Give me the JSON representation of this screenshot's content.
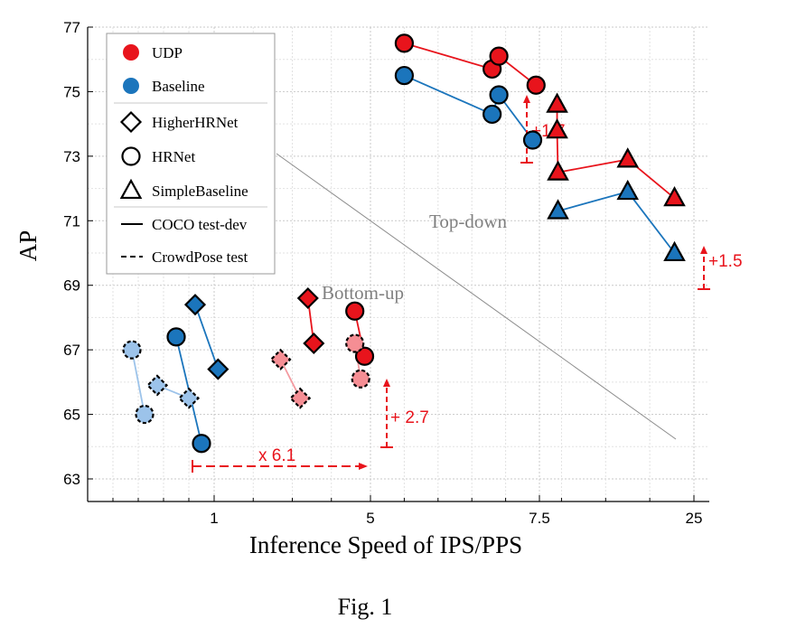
{
  "chart_data": {
    "type": "scatter",
    "xlabel": "Inference Speed of IPS/PPS",
    "ylabel": "AP",
    "x_tick_labels": [
      "1",
      "5",
      "7.5",
      "25"
    ],
    "y_ticks": [
      "63",
      "65",
      "67",
      "69",
      "71",
      "73",
      "75",
      "77"
    ],
    "ylim": [
      62.3,
      77
    ],
    "grid": true,
    "legend_position": "top-left",
    "legend": {
      "colors": [
        {
          "label": "UDP",
          "color": "#e8141c"
        },
        {
          "label": "Baseline",
          "color": "#1b75bc"
        }
      ],
      "markers": [
        {
          "label": "HigherHRNet",
          "shape": "diamond"
        },
        {
          "label": "HRNet",
          "shape": "circle"
        },
        {
          "label": "SimpleBaseline",
          "shape": "triangle"
        }
      ],
      "lines": [
        {
          "label": "COCO test-dev",
          "style": "solid"
        },
        {
          "label": "CrowdPose test",
          "style": "dashed"
        }
      ]
    },
    "region_labels": {
      "top_down": "Top-down",
      "bottom_up": "Bottom-up"
    },
    "annotations": {
      "topdown_hrnet_gain": "+1.7",
      "topdown_simplebaseline_gain": "+1.5",
      "bottomup_gain": "+ 2.7",
      "speedup": "x 6.1"
    },
    "series": [
      {
        "method": "UDP",
        "model": "HRNet",
        "marker": "circle",
        "dataset": "COCO test-dev",
        "points": [
          [
            5.5,
            76.5
          ],
          [
            6.8,
            75.7
          ],
          [
            6.9,
            76.1
          ],
          [
            7.45,
            75.2
          ]
        ]
      },
      {
        "method": "Baseline",
        "model": "HRNet",
        "marker": "circle",
        "dataset": "COCO test-dev",
        "points": [
          [
            5.5,
            75.5
          ],
          [
            6.8,
            74.3
          ],
          [
            6.9,
            74.9
          ],
          [
            7.4,
            73.5
          ]
        ]
      },
      {
        "method": "UDP",
        "model": "SimpleBaseline",
        "marker": "triangle",
        "dataset": "COCO test-dev",
        "points": [
          [
            9.5,
            74.6
          ],
          [
            9.5,
            73.8
          ],
          [
            9.6,
            72.5
          ],
          [
            17.5,
            72.9
          ],
          [
            22.8,
            71.7
          ]
        ]
      },
      {
        "method": "Baseline",
        "model": "SimpleBaseline",
        "marker": "triangle",
        "dataset": "COCO test-dev",
        "points": [
          [
            9.6,
            71.3
          ],
          [
            17.5,
            71.9
          ],
          [
            22.8,
            70.0
          ]
        ]
      },
      {
        "method": "UDP",
        "model": "HigherHRNet",
        "marker": "diamond",
        "dataset": "COCO test-dev",
        "points": [
          [
            3.4,
            68.6
          ],
          [
            3.55,
            67.2
          ]
        ]
      },
      {
        "method": "UDP",
        "model": "HRNet",
        "marker": "circle",
        "dataset": "COCO test-dev",
        "points": [
          [
            4.6,
            68.2
          ],
          [
            4.85,
            66.8
          ]
        ]
      },
      {
        "method": "UDP",
        "model": "HigherHRNet",
        "marker": "diamond",
        "dataset": "CrowdPose test",
        "points": [
          [
            2.7,
            66.7
          ],
          [
            3.2,
            65.5
          ]
        ]
      },
      {
        "method": "UDP",
        "model": "HRNet",
        "marker": "circle",
        "dataset": "CrowdPose test",
        "points": [
          [
            4.6,
            67.2
          ],
          [
            4.75,
            66.1
          ]
        ]
      },
      {
        "method": "Baseline",
        "model": "HigherHRNet",
        "marker": "diamond",
        "dataset": "COCO test-dev",
        "points": [
          [
            0.85,
            68.4
          ],
          [
            1.1,
            66.4
          ]
        ]
      },
      {
        "method": "Baseline",
        "model": "HRNet",
        "marker": "circle",
        "dataset": "COCO test-dev",
        "points": [
          [
            0.7,
            67.4
          ],
          [
            0.9,
            64.1
          ]
        ]
      },
      {
        "method": "Baseline",
        "model": "HigherHRNet",
        "marker": "diamond",
        "dataset": "CrowdPose test",
        "points": [
          [
            0.55,
            65.9
          ],
          [
            0.8,
            65.5
          ]
        ]
      },
      {
        "method": "Baseline",
        "model": "HRNet",
        "marker": "circle",
        "dataset": "CrowdPose test",
        "points": [
          [
            0.35,
            67.0
          ],
          [
            0.45,
            65.0
          ]
        ]
      }
    ]
  },
  "caption": "Fig.  1"
}
